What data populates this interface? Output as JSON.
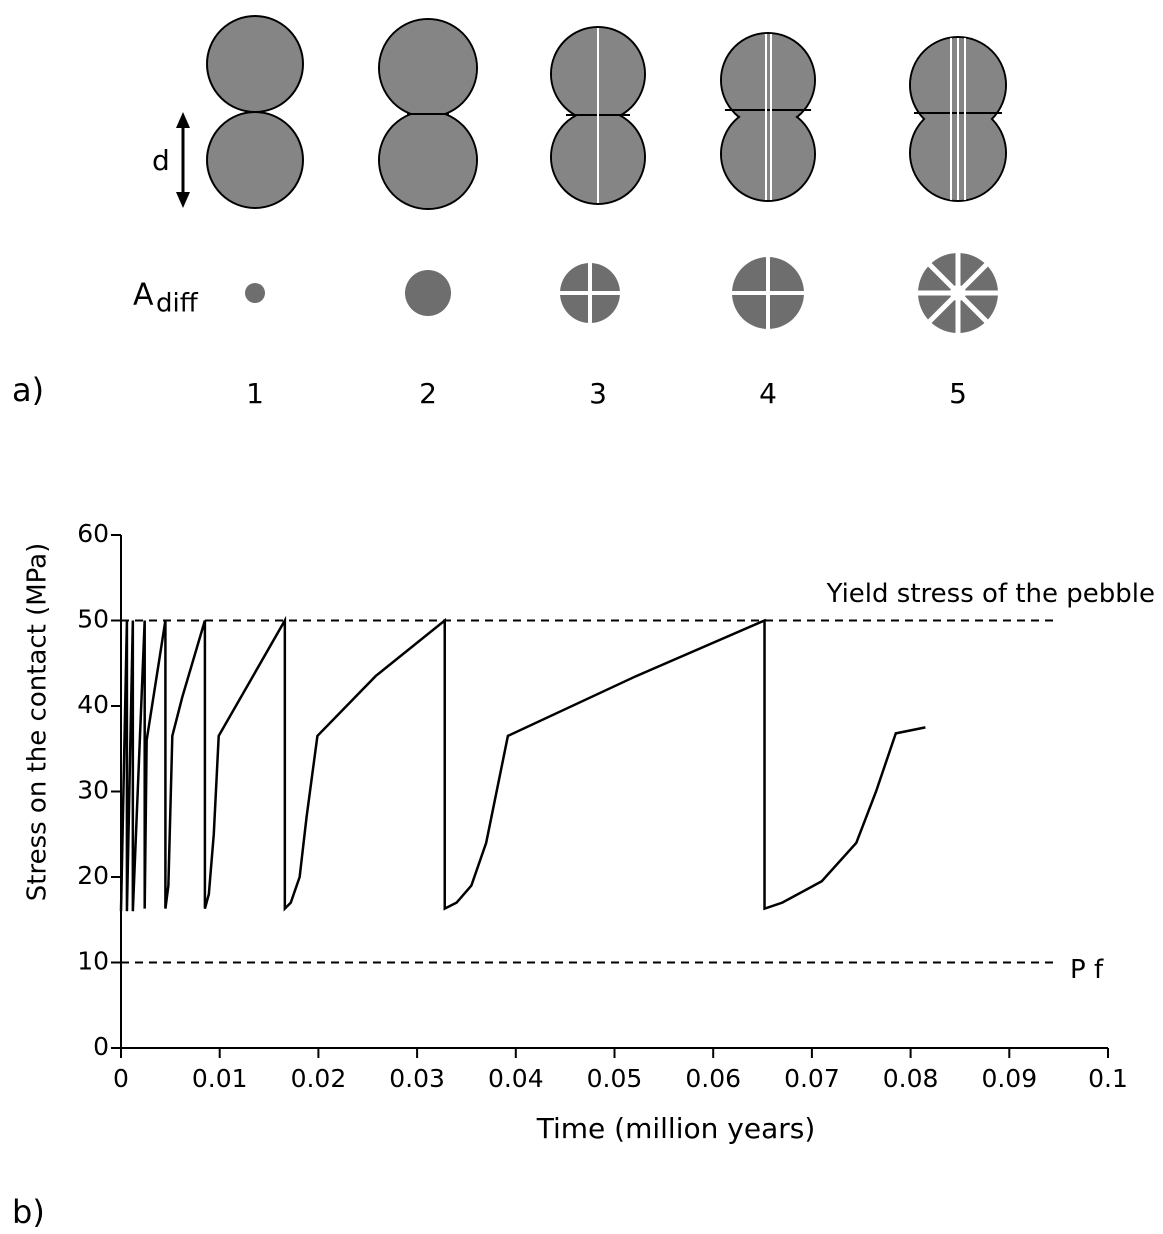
{
  "diagram": {
    "panel_label": "a)",
    "distance_label": "d",
    "area_label": "A",
    "area_subscript": "diff",
    "stages": [
      "1",
      "2",
      "3",
      "4",
      "5"
    ]
  },
  "chart_data": {
    "type": "line",
    "panel_label": "b)",
    "x_label": "Time   (million   years)",
    "y_label": "Stress  on  the  contact  (MPa)",
    "xlim": [
      0,
      0.1
    ],
    "ylim": [
      0,
      60
    ],
    "xticks": [
      0,
      0.01,
      0.02,
      0.03,
      0.04,
      0.05,
      0.06,
      0.07,
      0.08,
      0.09,
      0.1
    ],
    "yticks": [
      0,
      10,
      20,
      30,
      40,
      50,
      60
    ],
    "grid": false,
    "reference_lines": [
      {
        "value": 50,
        "label": "Yield  stress  of  the  pebble"
      },
      {
        "value": 10,
        "label": "P f"
      }
    ],
    "series": [
      {
        "color": "#000000",
        "x": [
          0,
          0.0006,
          0.0006,
          0.0012,
          0.0012,
          0.0024,
          0.0024,
          0.0026,
          0.0045,
          0.0045,
          0.0048,
          0.0052,
          0.0062,
          0.0085,
          0.0085,
          0.0089,
          0.0094,
          0.0099,
          0.0166,
          0.0166,
          0.0172,
          0.0181,
          0.0188,
          0.0199,
          0.0258,
          0.0328,
          0.0328,
          0.034,
          0.0355,
          0.037,
          0.0392,
          0.0522,
          0.0652,
          0.0652,
          0.067,
          0.071,
          0.0745,
          0.0765,
          0.0785,
          0.0815
        ],
        "values": [
          16,
          50,
          16,
          50,
          16,
          50,
          16.3,
          36,
          50,
          16.3,
          19,
          36.5,
          41,
          50,
          16.3,
          18,
          25,
          36.5,
          50,
          16.3,
          17,
          20,
          27,
          36.5,
          43.5,
          50,
          16.3,
          17,
          19,
          24,
          36.5,
          43.5,
          50,
          16.3,
          17,
          19.5,
          24,
          30,
          36.8,
          37.5
        ]
      }
    ]
  }
}
